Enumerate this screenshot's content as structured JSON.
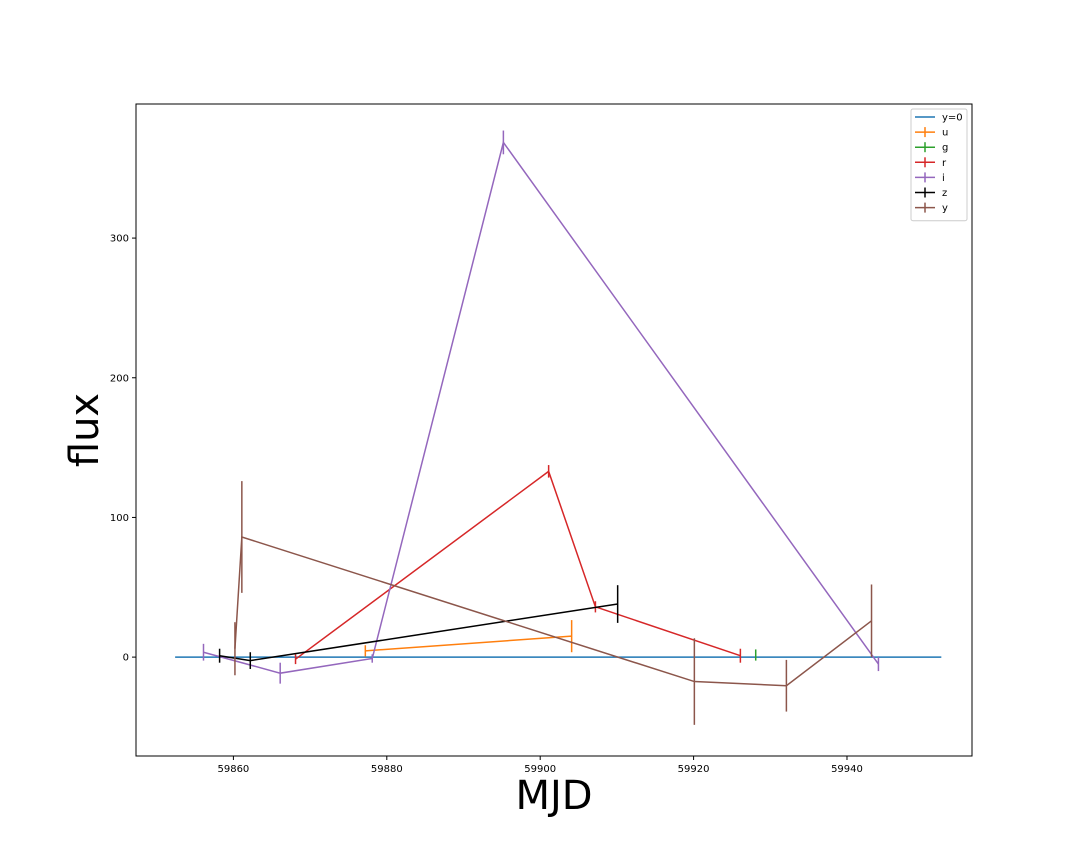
{
  "chart_data": {
    "type": "line",
    "xlabel": "MJD",
    "ylabel": "flux",
    "xlim": [
      59847.3,
      59956.3
    ],
    "ylim": [
      -70.8,
      396
    ],
    "x_ticks": [
      59860,
      59880,
      59900,
      59920,
      59940
    ],
    "y_ticks": [
      0,
      100,
      200,
      300
    ],
    "grid": false,
    "legend_position": "top-right",
    "baseline": {
      "name": "y=0",
      "x": [
        59852.4,
        59952.3
      ],
      "y": [
        0,
        0
      ],
      "color": "#1f77b4"
    },
    "series": [
      {
        "name": "u",
        "color": "#ff7f0e",
        "x": [
          59877.2,
          59904.1
        ],
        "y": [
          4.5,
          15.0
        ],
        "err": [
          4.0,
          11.5
        ]
      },
      {
        "name": "g",
        "color": "#2ca02c",
        "x": [
          59928.1
        ],
        "y": [
          1.5
        ],
        "err": [
          4.0
        ]
      },
      {
        "name": "r",
        "color": "#d62728",
        "x": [
          59868.1,
          59901.1,
          59907.2,
          59926.1
        ],
        "y": [
          -1.5,
          133.0,
          36.0,
          1.0
        ],
        "err": [
          3.5,
          4.5,
          4.0,
          5.0
        ]
      },
      {
        "name": "i",
        "color": "#9467bd",
        "x": [
          59856.1,
          59866.1,
          59878.1,
          59895.2,
          59944.1
        ],
        "y": [
          3.5,
          -11.5,
          -1.0,
          368.5,
          -5.0
        ],
        "err": [
          6.0,
          7.5,
          3.0,
          8.5,
          5.0
        ]
      },
      {
        "name": "z",
        "color": "#000000",
        "x": [
          59858.2,
          59862.2,
          59910.1
        ],
        "y": [
          1.0,
          -2.5,
          38.0
        ],
        "err": [
          5.0,
          6.0,
          13.5
        ]
      },
      {
        "name": "y",
        "color": "#8c564b",
        "x": [
          59860.2,
          59861.1,
          59920.1,
          59932.1,
          59943.2
        ],
        "y": [
          6.0,
          86.0,
          -17.5,
          -20.5,
          26.0
        ],
        "err": [
          19.0,
          40.0,
          31.0,
          18.5,
          26.0
        ]
      }
    ]
  }
}
